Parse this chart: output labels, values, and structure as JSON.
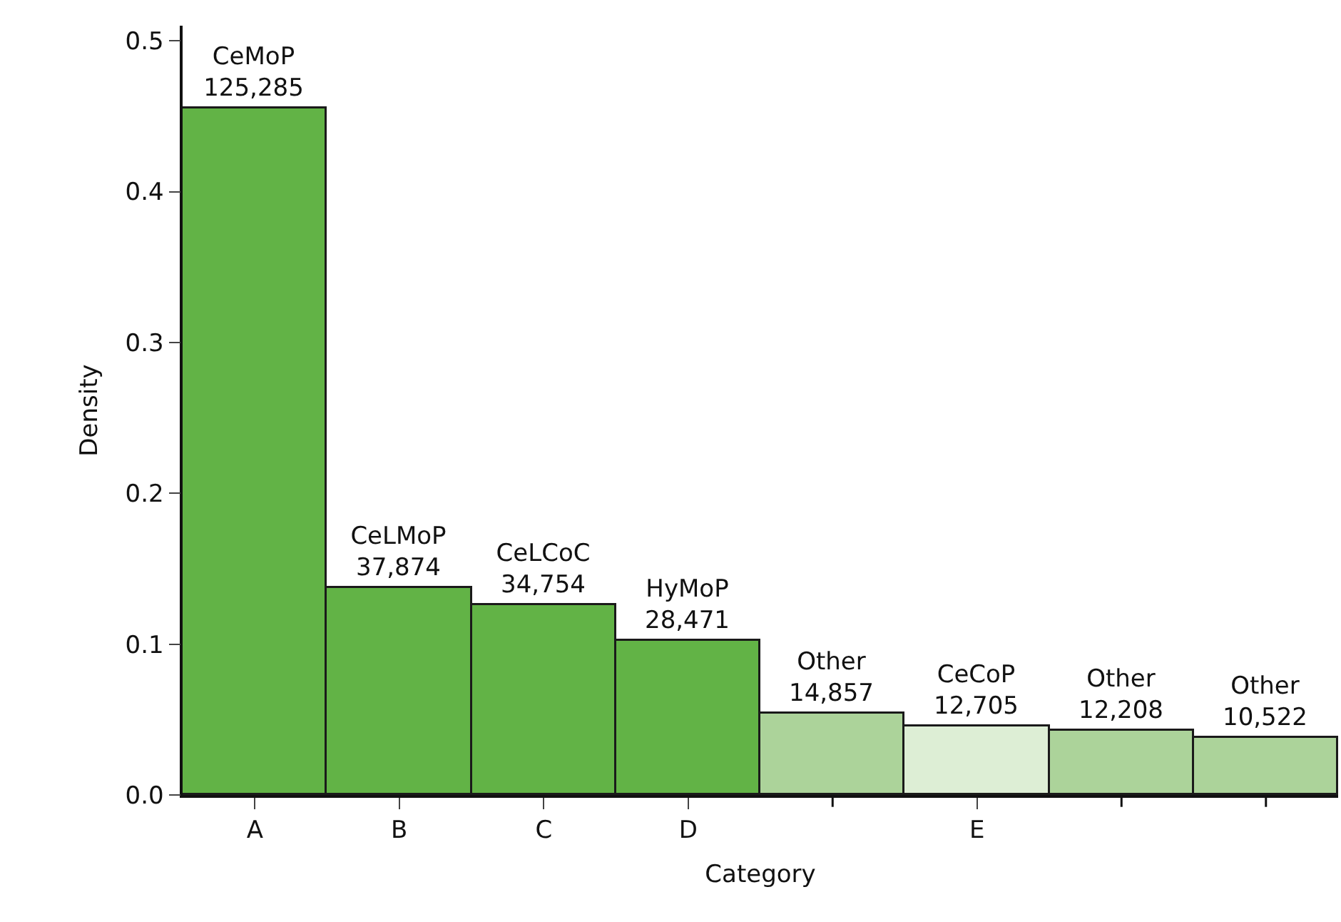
{
  "chart_data": {
    "type": "bar",
    "xlabel": "Category",
    "ylabel": "Density",
    "categories": [
      "A",
      "B",
      "C",
      "D",
      null,
      "E",
      null,
      null
    ],
    "values": [
      0.455,
      0.137,
      0.126,
      0.102,
      0.054,
      0.045,
      0.043,
      0.038
    ],
    "colors": [
      "#62b346",
      "#62b346",
      "#62b346",
      "#62b346",
      "#acd39a",
      "#ddeed5",
      "#acd39a",
      "#acd39a"
    ],
    "value_labels": [
      "CeMoP\n125,285",
      "CeLMoP\n37,874",
      "CeLCoC\n34,754",
      "HyMoP\n28,471",
      "Other\n14,857",
      "CeCoP\n12,705",
      "Other\n12,208",
      "Other\n10,522"
    ],
    "ylim": [
      0,
      0.51
    ],
    "yticks": [
      {
        "value": 0,
        "label": "0.0"
      },
      0.1,
      0.2,
      0.3,
      0.4,
      0.5
    ]
  }
}
